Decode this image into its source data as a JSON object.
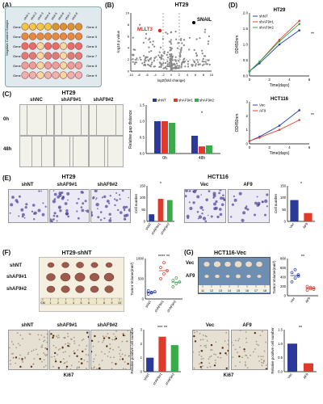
{
  "panelA": {
    "label": "(A)",
    "side_text": "Negative Control Sample",
    "columns": [
      "siNA-1",
      "siNA-2",
      "siNA-3",
      "siNA-4",
      "siNA-5",
      "siNA-6",
      "siNA-7",
      "siNA-8"
    ],
    "genes_left": [
      "Gene 1",
      "Gene 2",
      "Gene 3",
      "Gene 4",
      "Gene 5",
      "Gene 6"
    ],
    "genes_right": [
      "Gene 4",
      "Gene 5",
      "Gene 6",
      "Gene 7",
      "Gene 8",
      "Gene 9"
    ]
  },
  "panelB": {
    "label": "(B)",
    "title": "HT29",
    "ylabel": "-log10 p value",
    "xlabel": "log2(fold change)",
    "highlight_left": "MLLT3",
    "highlight_right": "SNAIL",
    "xticks": [
      "-10",
      "-8",
      "-6",
      "-4",
      "-2",
      "0",
      "2",
      "4",
      "6",
      "8",
      "10"
    ],
    "yticks": [
      "0",
      "2",
      "4",
      "6",
      "8",
      "10"
    ]
  },
  "panelC": {
    "label": "(C)",
    "title": "HT29",
    "columns": [
      "shNC",
      "shAF9#1",
      "shAF9#2"
    ],
    "rows": [
      "0h",
      "48h"
    ]
  },
  "panelE": {
    "label": "(E)",
    "title_left": "HT29",
    "title_right": "HCT116",
    "left_columns": [
      "shNT",
      "shAF9#1",
      "shAF9#2"
    ],
    "right_columns": [
      "Vec",
      "AF9"
    ]
  },
  "panelF": {
    "label": "(F)",
    "title": "HT29-shNT",
    "rows": [
      "shNT",
      "shAF9#1",
      "shAF9#2"
    ],
    "ruler": [
      "CM",
      "1",
      "2",
      "3",
      "4",
      "5",
      "6",
      "7",
      "8",
      "9",
      "10"
    ]
  },
  "panelG": {
    "label": "(G)",
    "title": "HCT116-Vec",
    "rows": [
      "Vec",
      "AF9"
    ],
    "ruler": [
      "11",
      "12",
      "13",
      "14",
      "15",
      "16",
      "17",
      "18"
    ]
  },
  "ihc": {
    "left_columns": [
      "shNT",
      "shAF9#1",
      "shAF9#2"
    ],
    "right_columns": [
      "Vec",
      "AF9"
    ],
    "marker_left": "Ki67",
    "marker_right": "Ki67"
  },
  "chart_data": [
    {
      "id": "D-HT29",
      "label": "(D)",
      "type": "line",
      "title": "HT29",
      "xlabel": "Time(days)",
      "ylabel": "OD450nm",
      "x": [
        0,
        1,
        3,
        5
      ],
      "ylim": [
        0,
        2.0
      ],
      "yticks": [
        "0.0",
        "0.5",
        "1.0",
        "1.5",
        "2.0"
      ],
      "xticks": [
        "0",
        "2",
        "4",
        "6"
      ],
      "series": [
        {
          "name": "shNT",
          "color": "#1f3fbf",
          "values": [
            0.15,
            0.4,
            1.0,
            1.45
          ]
        },
        {
          "name": "shAF9#1",
          "color": "#e8412c",
          "values": [
            0.15,
            0.45,
            1.15,
            1.75
          ]
        },
        {
          "name": "shAF9#2",
          "color": "#2aa84a",
          "values": [
            0.15,
            0.45,
            1.1,
            1.65
          ]
        }
      ],
      "annotation": "**"
    },
    {
      "id": "D-HCT116",
      "type": "line",
      "title": "HCT116",
      "xlabel": "Time(days)",
      "ylabel": "OD450nm",
      "x": [
        0,
        1,
        3,
        5
      ],
      "ylim": [
        0,
        3
      ],
      "yticks": [
        "0",
        "1",
        "2",
        "3"
      ],
      "xticks": [
        "0",
        "2",
        "4",
        "6"
      ],
      "series": [
        {
          "name": "Vec",
          "color": "#1f3fbf",
          "values": [
            0.2,
            0.5,
            1.3,
            2.4
          ]
        },
        {
          "name": "AF9",
          "color": "#e8412c",
          "values": [
            0.2,
            0.45,
            1.0,
            1.7
          ]
        }
      ],
      "annotation": "**"
    },
    {
      "id": "C-gap",
      "type": "bar",
      "ylabel": "Relative gap distance",
      "categories": [
        "0h",
        "48h"
      ],
      "ylim": [
        0,
        1.5
      ],
      "yticks": [
        "0.0",
        "0.5",
        "1.0",
        "1.5"
      ],
      "series": [
        {
          "name": "shNT",
          "color": "#2b3a99",
          "values": [
            1.0,
            0.55
          ]
        },
        {
          "name": "shAF9#1",
          "color": "#e03a2a",
          "values": [
            1.0,
            0.22
          ]
        },
        {
          "name": "shAF9#2",
          "color": "#3aaa4a",
          "values": [
            0.95,
            0.25
          ]
        }
      ],
      "annotation": "*"
    },
    {
      "id": "E-HT29",
      "type": "bar",
      "ylabel": "Cell number",
      "categories": [
        "shNT",
        "shAF9#1",
        "shAF9#2"
      ],
      "colors": [
        "#2b3a99",
        "#e03a2a",
        "#3aaa4a"
      ],
      "values": [
        30,
        95,
        90
      ],
      "ylim": [
        0,
        150
      ],
      "yticks": [
        "0",
        "50",
        "100",
        "150"
      ],
      "annotation": "*"
    },
    {
      "id": "E-HCT116",
      "type": "bar",
      "ylabel": "Cell number",
      "categories": [
        "Vec",
        "AF9"
      ],
      "colors": [
        "#2b3a99",
        "#e03a2a"
      ],
      "values": [
        90,
        35
      ],
      "ylim": [
        0,
        150
      ],
      "yticks": [
        "0",
        "50",
        "100",
        "150"
      ],
      "annotation": "*"
    },
    {
      "id": "F-vol",
      "type": "scatter",
      "ylabel": "Tumor Volume(mm³)",
      "categories": [
        "shNT",
        "shAF9#1",
        "shAF9#2"
      ],
      "colors": [
        "#2b3a99",
        "#e03a2a",
        "#3aaa4a"
      ],
      "values": [
        [
          120,
          150,
          180,
          200,
          160
        ],
        [
          500,
          620,
          700,
          780,
          900
        ],
        [
          300,
          380,
          420,
          460,
          520
        ]
      ],
      "ylim": [
        0,
        1000
      ],
      "yticks": [
        "0",
        "500",
        "1000"
      ],
      "annotation": "****  **"
    },
    {
      "id": "G-vol",
      "type": "scatter",
      "ylabel": "Tumor Volume(mm³)",
      "categories": [
        "Vec",
        "AF9"
      ],
      "colors": [
        "#2b3a99",
        "#e03a2a"
      ],
      "values": [
        [
          300,
          380,
          420,
          500,
          560,
          450
        ],
        [
          120,
          150,
          170,
          200,
          180,
          140
        ]
      ],
      "ylim": [
        0,
        800
      ],
      "yticks": [
        "0",
        "200",
        "400",
        "600",
        "800"
      ],
      "annotation": "**"
    },
    {
      "id": "IHC-left",
      "type": "bar",
      "ylabel": "Relative positive cell number",
      "categories": [
        "shNT",
        "shAF9#1",
        "shAF9#2"
      ],
      "colors": [
        "#2b3a99",
        "#e03a2a",
        "#3aaa4a"
      ],
      "values": [
        1.0,
        2.5,
        1.9
      ],
      "ylim": [
        0,
        3
      ],
      "yticks": [
        "0",
        "1",
        "2",
        "3"
      ],
      "annotation": "***  **"
    },
    {
      "id": "IHC-right",
      "type": "bar",
      "ylabel": "Relative positive cell number",
      "categories": [
        "Vec",
        "AF9"
      ],
      "colors": [
        "#2b3a99",
        "#e03a2a"
      ],
      "values": [
        1.0,
        0.3
      ],
      "ylim": [
        0,
        1.5
      ],
      "yticks": [
        "0.0",
        "0.5",
        "1.0",
        "1.5"
      ],
      "annotation": "**"
    }
  ]
}
